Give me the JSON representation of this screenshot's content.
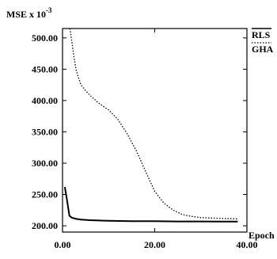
{
  "chart_data": {
    "type": "line",
    "ylabel": "MSE x 10",
    "ylabel_exponent": "-3",
    "xlabel": "Epoch",
    "xlim": [
      0,
      40
    ],
    "ylim": [
      190,
      515
    ],
    "xticks": [
      0,
      20,
      40
    ],
    "xtick_labels": [
      "0.00",
      "20.00",
      "40.00"
    ],
    "yticks": [
      200,
      250,
      300,
      350,
      400,
      450,
      500
    ],
    "ytick_labels": [
      "200.00",
      "250.00",
      "300.00",
      "350.00",
      "400.00",
      "450.00",
      "500.00"
    ],
    "grid": false,
    "legend_position": "right of plot, top",
    "series": [
      {
        "name": "RLS",
        "style": "solid",
        "x": [
          0.5,
          1.0,
          1.5,
          2.0,
          3.0,
          4.0,
          5.0,
          6.0,
          8.0,
          10.0,
          15.0,
          20.0,
          25.0,
          30.0,
          35.0,
          38.0
        ],
        "y": [
          262,
          240,
          216,
          213,
          211,
          210,
          209.5,
          209,
          208.5,
          208,
          207.5,
          207.3,
          207,
          207,
          206.8,
          206.8
        ]
      },
      {
        "name": "GHA",
        "style": "dotted",
        "x": [
          1.6,
          2.0,
          2.5,
          3.0,
          4.0,
          5.0,
          6.0,
          8.0,
          10.0,
          12.0,
          14.0,
          16.0,
          18.0,
          20.0,
          22.0,
          24.0,
          26.0,
          28.0,
          30.0,
          34.0,
          38.0
        ],
        "y": [
          515,
          495,
          468,
          447,
          425,
          416,
          408,
          395,
          385,
          370,
          347,
          320,
          287,
          255,
          236,
          225,
          218,
          215,
          213,
          212,
          211
        ]
      }
    ]
  }
}
